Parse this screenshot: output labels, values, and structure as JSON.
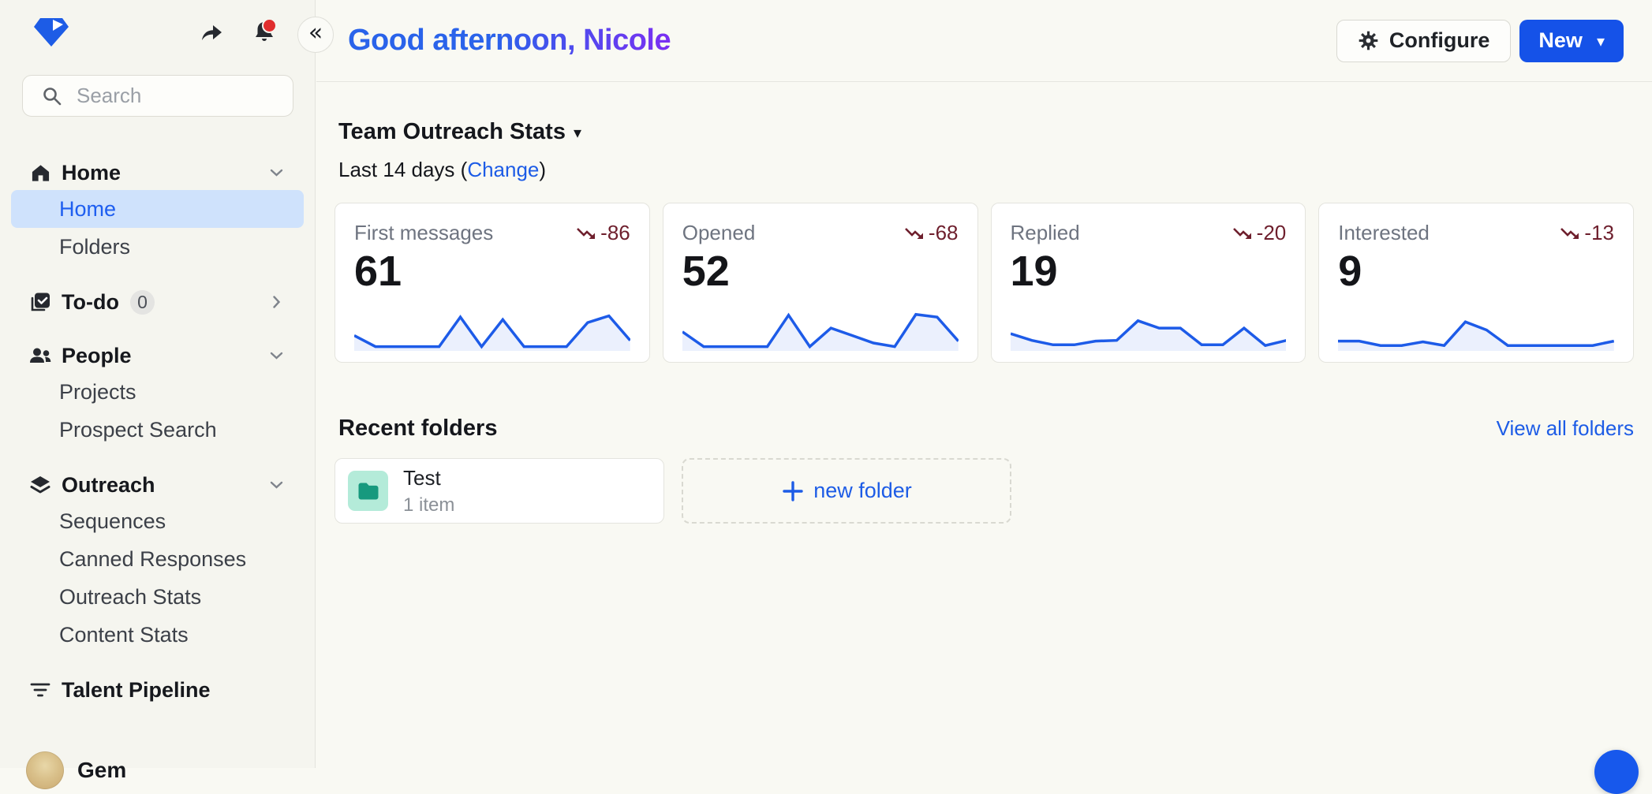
{
  "sidebar": {
    "search_placeholder": "Search",
    "nav": [
      {
        "label": "Home",
        "type": "header",
        "icon": "home-icon",
        "chevron": "down"
      },
      {
        "label": "Home",
        "type": "sub",
        "selected": true
      },
      {
        "label": "Folders",
        "type": "sub"
      },
      {
        "label": "To-do",
        "type": "header",
        "icon": "todo-icon",
        "badge": "0",
        "chevron": "right"
      },
      {
        "label": "People",
        "type": "header",
        "icon": "people-icon",
        "chevron": "down"
      },
      {
        "label": "Projects",
        "type": "sub"
      },
      {
        "label": "Prospect Search",
        "type": "sub"
      },
      {
        "label": "Outreach",
        "type": "header",
        "icon": "outreach-icon",
        "chevron": "down"
      },
      {
        "label": "Sequences",
        "type": "sub"
      },
      {
        "label": "Canned Responses",
        "type": "sub"
      },
      {
        "label": "Outreach Stats",
        "type": "sub"
      },
      {
        "label": "Content Stats",
        "type": "sub"
      },
      {
        "label": "Talent Pipeline",
        "type": "header",
        "icon": "talent-pipeline-icon"
      }
    ],
    "user": {
      "name": "Gem"
    }
  },
  "header": {
    "greeting": "Good afternoon, Nicole",
    "configure_label": "Configure",
    "new_label": "New",
    "new_caret": "▾"
  },
  "collapse_glyph": "«",
  "main": {
    "section_title": "Team Outreach Stats",
    "section_caret": "▾",
    "range_prefix": "Last 14 days (",
    "change_label": "Change",
    "range_suffix": ")",
    "stats": [
      {
        "label": "First messages",
        "value": "61",
        "delta": "-86",
        "spark": [
          35,
          5,
          5,
          5,
          5,
          85,
          5,
          78,
          5,
          5,
          5,
          70,
          88,
          22
        ]
      },
      {
        "label": "Opened",
        "value": "52",
        "delta": "-68",
        "spark": [
          45,
          5,
          5,
          5,
          5,
          90,
          5,
          55,
          35,
          15,
          5,
          92,
          85,
          20
        ]
      },
      {
        "label": "Replied",
        "value": "19",
        "delta": "-20",
        "spark": [
          40,
          22,
          10,
          10,
          20,
          22,
          75,
          55,
          55,
          10,
          10,
          55,
          8,
          22
        ]
      },
      {
        "label": "Interested",
        "value": "9",
        "delta": "-13",
        "spark": [
          20,
          20,
          8,
          8,
          18,
          8,
          72,
          50,
          8,
          8,
          8,
          8,
          8,
          20
        ]
      }
    ],
    "folders": {
      "title": "Recent folders",
      "view_all_label": "View all folders",
      "items": [
        {
          "name": "Test",
          "meta": "1 item"
        }
      ],
      "new_folder_label": "new folder"
    }
  },
  "chart_data": [
    {
      "type": "line",
      "title": "First messages (last 14 days)",
      "values": [
        35,
        5,
        5,
        5,
        5,
        85,
        5,
        78,
        5,
        5,
        5,
        70,
        88,
        22
      ],
      "total": 61,
      "delta": -86,
      "legend_position": "none",
      "grid": false
    },
    {
      "type": "line",
      "title": "Opened (last 14 days)",
      "values": [
        45,
        5,
        5,
        5,
        5,
        90,
        5,
        55,
        35,
        15,
        5,
        92,
        85,
        20
      ],
      "total": 52,
      "delta": -68,
      "legend_position": "none",
      "grid": false
    },
    {
      "type": "line",
      "title": "Replied (last 14 days)",
      "values": [
        40,
        22,
        10,
        10,
        20,
        22,
        75,
        55,
        55,
        10,
        10,
        55,
        8,
        22
      ],
      "total": 19,
      "delta": -20,
      "legend_position": "none",
      "grid": false
    },
    {
      "type": "line",
      "title": "Interested (last 14 days)",
      "values": [
        20,
        20,
        8,
        8,
        18,
        8,
        72,
        50,
        8,
        8,
        8,
        8,
        8,
        20
      ],
      "total": 9,
      "delta": -13,
      "legend_position": "none",
      "grid": false
    }
  ],
  "colors": {
    "accent_blue": "#1d5ce6",
    "new_button_blue": "#1552e8",
    "spark_line": "#1d5be8",
    "negative_maroon": "#6e1f2d",
    "selected_pill": "#cfe2fc",
    "folder_tile_bg": "#b4ebd9",
    "folder_glyph": "#17997e",
    "bell_dot_red": "#e02d2d"
  }
}
